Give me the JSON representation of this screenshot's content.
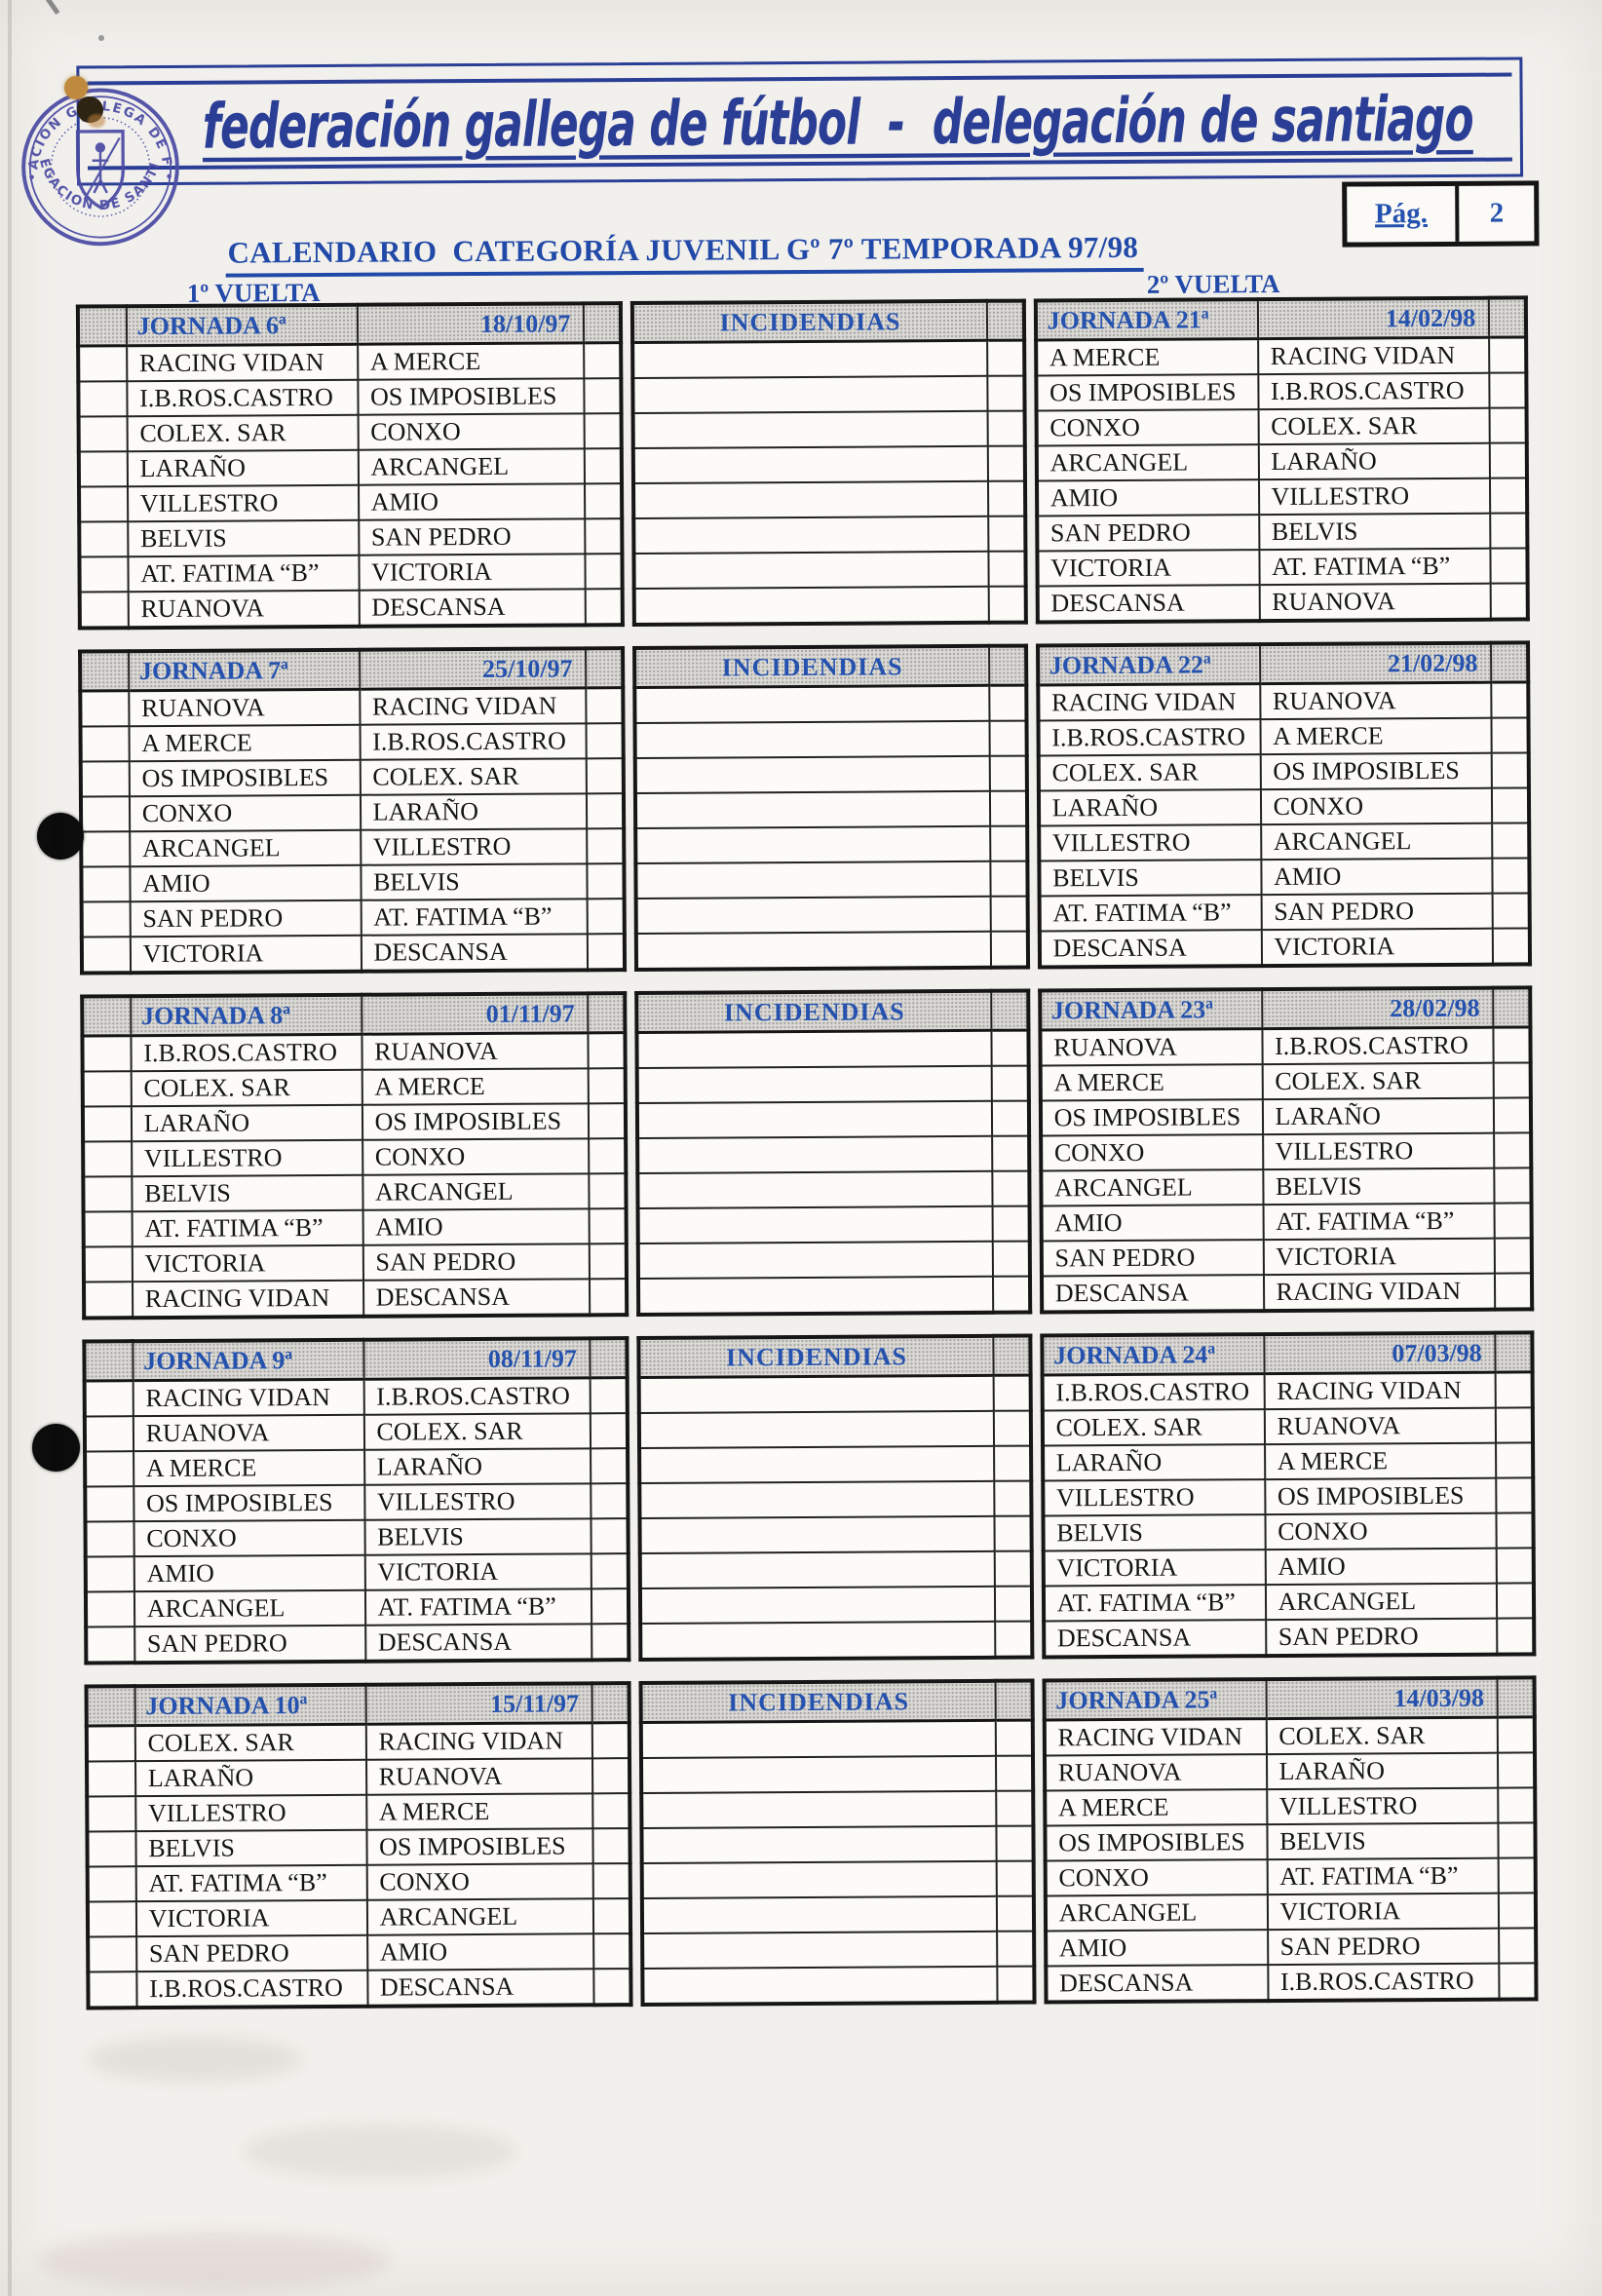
{
  "banner": {
    "title": "federación gallega de fútbol  -  delegación de santiago"
  },
  "stamp": {
    "arc_top": "FEDERACION GALLEGA DE FUTBOL",
    "arc_bottom": "DELEGACION DE SANTIAGO"
  },
  "pagination": {
    "label": "Pág.",
    "number": "2"
  },
  "title": "CALENDARIO  CATEGORÍA JUVENIL Gº 7º TEMPORADA 97/98",
  "labels": {
    "first_leg": "1º VUELTA",
    "second_leg": "2º VUELTA",
    "incidents": "INCIDENDIAS"
  },
  "blocks": [
    {
      "left": {
        "jornada": "JORNADA 6ª",
        "date": "18/10/97",
        "matches": [
          [
            "RACING VIDAN",
            "A MERCE"
          ],
          [
            "I.B.ROS.CASTRO",
            "OS IMPOSIBLES"
          ],
          [
            "COLEX. SAR",
            "CONXO"
          ],
          [
            "LARAÑO",
            "ARCANGEL"
          ],
          [
            "VILLESTRO",
            "AMIO"
          ],
          [
            "BELVIS",
            "SAN PEDRO"
          ],
          [
            "AT. FATIMA “B”",
            "VICTORIA"
          ],
          [
            "RUANOVA",
            "DESCANSA"
          ]
        ]
      },
      "right": {
        "jornada": "JORNADA 21ª",
        "date": "14/02/98",
        "matches": [
          [
            "A MERCE",
            "RACING VIDAN"
          ],
          [
            "OS IMPOSIBLES",
            "I.B.ROS.CASTRO"
          ],
          [
            "CONXO",
            "COLEX. SAR"
          ],
          [
            "ARCANGEL",
            "LARAÑO"
          ],
          [
            "AMIO",
            "VILLESTRO"
          ],
          [
            "SAN PEDRO",
            "BELVIS"
          ],
          [
            "VICTORIA",
            "AT. FATIMA “B”"
          ],
          [
            "DESCANSA",
            "RUANOVA"
          ]
        ]
      }
    },
    {
      "left": {
        "jornada": "JORNADA 7ª",
        "date": "25/10/97",
        "matches": [
          [
            "RUANOVA",
            "RACING VIDAN"
          ],
          [
            "A MERCE",
            "I.B.ROS.CASTRO"
          ],
          [
            "OS IMPOSIBLES",
            "COLEX. SAR"
          ],
          [
            "CONXO",
            "LARAÑO"
          ],
          [
            "ARCANGEL",
            "VILLESTRO"
          ],
          [
            "AMIO",
            "BELVIS"
          ],
          [
            "SAN PEDRO",
            "AT. FATIMA “B”"
          ],
          [
            "VICTORIA",
            "DESCANSA"
          ]
        ]
      },
      "right": {
        "jornada": "JORNADA 22ª",
        "date": "21/02/98",
        "matches": [
          [
            "RACING VIDAN",
            "RUANOVA"
          ],
          [
            "I.B.ROS.CASTRO",
            "A MERCE"
          ],
          [
            "COLEX. SAR",
            "OS IMPOSIBLES"
          ],
          [
            "LARAÑO",
            "CONXO"
          ],
          [
            "VILLESTRO",
            "ARCANGEL"
          ],
          [
            "BELVIS",
            "AMIO"
          ],
          [
            "AT. FATIMA “B”",
            "SAN PEDRO"
          ],
          [
            "DESCANSA",
            "VICTORIA"
          ]
        ]
      }
    },
    {
      "left": {
        "jornada": "JORNADA 8ª",
        "date": "01/11/97",
        "matches": [
          [
            "I.B.ROS.CASTRO",
            "RUANOVA"
          ],
          [
            "COLEX. SAR",
            "A MERCE"
          ],
          [
            "LARAÑO",
            "OS IMPOSIBLES"
          ],
          [
            "VILLESTRO",
            "CONXO"
          ],
          [
            "BELVIS",
            "ARCANGEL"
          ],
          [
            "AT. FATIMA “B”",
            "AMIO"
          ],
          [
            "VICTORIA",
            "SAN PEDRO"
          ],
          [
            "RACING VIDAN",
            "DESCANSA"
          ]
        ]
      },
      "right": {
        "jornada": "JORNADA 23ª",
        "date": "28/02/98",
        "matches": [
          [
            "RUANOVA",
            "I.B.ROS.CASTRO"
          ],
          [
            "A MERCE",
            "COLEX. SAR"
          ],
          [
            "OS IMPOSIBLES",
            "LARAÑO"
          ],
          [
            "CONXO",
            "VILLESTRO"
          ],
          [
            "ARCANGEL",
            "BELVIS"
          ],
          [
            "AMIO",
            "AT. FATIMA “B”"
          ],
          [
            "SAN PEDRO",
            "VICTORIA"
          ],
          [
            "DESCANSA",
            "RACING VIDAN"
          ]
        ]
      }
    },
    {
      "left": {
        "jornada": "JORNADA 9ª",
        "date": "08/11/97",
        "matches": [
          [
            "RACING VIDAN",
            "I.B.ROS.CASTRO"
          ],
          [
            "RUANOVA",
            "COLEX. SAR"
          ],
          [
            "A MERCE",
            "LARAÑO"
          ],
          [
            "OS IMPOSIBLES",
            "VILLESTRO"
          ],
          [
            "CONXO",
            "BELVIS"
          ],
          [
            "AMIO",
            "VICTORIA"
          ],
          [
            "ARCANGEL",
            "AT. FATIMA “B”"
          ],
          [
            "SAN PEDRO",
            "DESCANSA"
          ]
        ]
      },
      "right": {
        "jornada": "JORNADA 24ª",
        "date": "07/03/98",
        "matches": [
          [
            "I.B.ROS.CASTRO",
            "RACING VIDAN"
          ],
          [
            "COLEX. SAR",
            "RUANOVA"
          ],
          [
            "LARAÑO",
            "A MERCE"
          ],
          [
            "VILLESTRO",
            "OS IMPOSIBLES"
          ],
          [
            "BELVIS",
            "CONXO"
          ],
          [
            "VICTORIA",
            "AMIO"
          ],
          [
            "AT. FATIMA “B”",
            "ARCANGEL"
          ],
          [
            "DESCANSA",
            "SAN PEDRO"
          ]
        ]
      }
    },
    {
      "left": {
        "jornada": "JORNADA 10ª",
        "date": "15/11/97",
        "matches": [
          [
            "COLEX. SAR",
            "RACING VIDAN"
          ],
          [
            "LARAÑO",
            "RUANOVA"
          ],
          [
            "VILLESTRO",
            "A MERCE"
          ],
          [
            "BELVIS",
            "OS IMPOSIBLES"
          ],
          [
            "AT. FATIMA “B”",
            "CONXO"
          ],
          [
            "VICTORIA",
            "ARCANGEL"
          ],
          [
            "SAN PEDRO",
            "AMIO"
          ],
          [
            "I.B.ROS.CASTRO",
            "DESCANSA"
          ]
        ]
      },
      "right": {
        "jornada": "JORNADA 25ª",
        "date": "14/03/98",
        "matches": [
          [
            "RACING VIDAN",
            "COLEX. SAR"
          ],
          [
            "RUANOVA",
            "LARAÑO"
          ],
          [
            "A MERCE",
            "VILLESTRO"
          ],
          [
            "OS IMPOSIBLES",
            "BELVIS"
          ],
          [
            "CONXO",
            "AT. FATIMA “B”"
          ],
          [
            "ARCANGEL",
            "VICTORIA"
          ],
          [
            "AMIO",
            "SAN PEDRO"
          ],
          [
            "DESCANSA",
            "I.B.ROS.CASTRO"
          ]
        ]
      }
    }
  ]
}
